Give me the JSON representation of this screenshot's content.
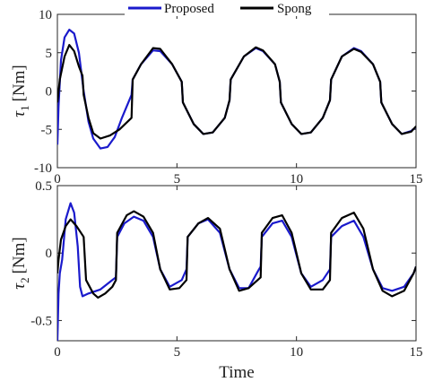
{
  "chart_data": {
    "type": "line",
    "xlabel": "Time",
    "legend": {
      "placement": "top-center",
      "entries": [
        {
          "name": "Proposed",
          "color": "#1a1acc"
        },
        {
          "name": "Spong",
          "color": "#000000"
        }
      ]
    },
    "subplots": [
      {
        "ylabel_symbol": "τ",
        "ylabel_sub": "1",
        "ylabel_unit": "[Nm]",
        "xlim": [
          0,
          15
        ],
        "ylim": [
          -10,
          10
        ],
        "xticks": [
          0,
          5,
          10,
          15
        ],
        "yticks": [
          10,
          5,
          0,
          -5,
          -10
        ],
        "xtick_labels": [
          "0",
          "5",
          "10",
          "15"
        ],
        "ytick_labels": [
          "10",
          "5",
          "0",
          "-5",
          "-10"
        ],
        "series": [
          {
            "name": "Proposed",
            "color": "#1a1acc",
            "points": [
              [
                0,
                -7
              ],
              [
                0.05,
                -2
              ],
              [
                0.15,
                4
              ],
              [
                0.3,
                7
              ],
              [
                0.5,
                8
              ],
              [
                0.7,
                7.5
              ],
              [
                0.9,
                5
              ],
              [
                1.1,
                0
              ],
              [
                1.3,
                -4
              ],
              [
                1.5,
                -6.2
              ],
              [
                1.8,
                -7.5
              ],
              [
                2.1,
                -7.3
              ],
              [
                2.4,
                -6
              ],
              [
                2.7,
                -3.5
              ],
              [
                3.1,
                -0.5
              ],
              [
                3.15,
                1.5
              ],
              [
                3.5,
                3.5
              ],
              [
                4.0,
                5.3
              ],
              [
                4.3,
                5.2
              ],
              [
                4.8,
                3.5
              ],
              [
                5.2,
                1.2
              ],
              [
                5.25,
                -1.5
              ],
              [
                5.7,
                -4.3
              ],
              [
                6.1,
                -5.6
              ],
              [
                6.5,
                -5.4
              ],
              [
                7.0,
                -3.5
              ],
              [
                7.2,
                -1.2
              ],
              [
                7.25,
                1.5
              ],
              [
                7.8,
                4.5
              ],
              [
                8.3,
                5.6
              ],
              [
                8.6,
                5.2
              ],
              [
                9.1,
                3.5
              ],
              [
                9.3,
                1.2
              ],
              [
                9.35,
                -1.5
              ],
              [
                9.8,
                -4.3
              ],
              [
                10.2,
                -5.6
              ],
              [
                10.6,
                -5.4
              ],
              [
                11.1,
                -3.5
              ],
              [
                11.4,
                -1.2
              ],
              [
                11.45,
                1.5
              ],
              [
                11.9,
                4.5
              ],
              [
                12.4,
                5.6
              ],
              [
                12.7,
                5.2
              ],
              [
                13.2,
                3.5
              ],
              [
                13.5,
                1.2
              ],
              [
                13.55,
                -1.5
              ],
              [
                14.0,
                -4.3
              ],
              [
                14.4,
                -5.6
              ],
              [
                14.8,
                -5.2
              ],
              [
                15,
                -4.7
              ]
            ]
          },
          {
            "name": "Spong",
            "color": "#000000",
            "points": [
              [
                0,
                -1.5
              ],
              [
                0.1,
                1.5
              ],
              [
                0.3,
                4.5
              ],
              [
                0.5,
                6
              ],
              [
                0.7,
                5.2
              ],
              [
                0.9,
                3.2
              ],
              [
                1.05,
                2
              ],
              [
                1.1,
                -0.5
              ],
              [
                1.3,
                -3.5
              ],
              [
                1.5,
                -5.5
              ],
              [
                1.8,
                -6.2
              ],
              [
                2.2,
                -5.8
              ],
              [
                2.6,
                -5
              ],
              [
                3.1,
                -3.5
              ],
              [
                3.15,
                1.5
              ],
              [
                3.5,
                3.5
              ],
              [
                4.0,
                5.6
              ],
              [
                4.3,
                5.5
              ],
              [
                4.8,
                3.5
              ],
              [
                5.2,
                1.2
              ],
              [
                5.25,
                -1.5
              ],
              [
                5.7,
                -4.3
              ],
              [
                6.1,
                -5.6
              ],
              [
                6.5,
                -5.4
              ],
              [
                7.0,
                -3.5
              ],
              [
                7.2,
                -1.2
              ],
              [
                7.25,
                1.5
              ],
              [
                7.8,
                4.5
              ],
              [
                8.3,
                5.7
              ],
              [
                8.6,
                5.3
              ],
              [
                9.1,
                3.5
              ],
              [
                9.3,
                1.2
              ],
              [
                9.35,
                -1.5
              ],
              [
                9.8,
                -4.3
              ],
              [
                10.2,
                -5.6
              ],
              [
                10.6,
                -5.4
              ],
              [
                11.1,
                -3.5
              ],
              [
                11.4,
                -1.2
              ],
              [
                11.45,
                1.5
              ],
              [
                11.9,
                4.5
              ],
              [
                12.4,
                5.5
              ],
              [
                12.7,
                5.1
              ],
              [
                13.2,
                3.5
              ],
              [
                13.5,
                1.2
              ],
              [
                13.55,
                -1.5
              ],
              [
                14.0,
                -4.3
              ],
              [
                14.4,
                -5.6
              ],
              [
                14.8,
                -5.3
              ],
              [
                15,
                -4.6
              ]
            ]
          }
        ]
      },
      {
        "ylabel_symbol": "τ",
        "ylabel_sub": "2",
        "ylabel_unit": "[Nm]",
        "xlim": [
          0,
          15
        ],
        "ylim": [
          -0.65,
          0.5
        ],
        "xticks": [
          0,
          5,
          10,
          15
        ],
        "yticks": [
          0.5,
          0,
          -0.5
        ],
        "xtick_labels": [
          "0",
          "5",
          "10",
          "15"
        ],
        "ytick_labels": [
          "0.5",
          "0",
          "-0.5"
        ],
        "series": [
          {
            "name": "Proposed",
            "color": "#1a1acc",
            "points": [
              [
                0,
                -0.65
              ],
              [
                0.05,
                -0.3
              ],
              [
                0.1,
                -0.15
              ],
              [
                0.2,
                -0.05
              ],
              [
                0.35,
                0.25
              ],
              [
                0.55,
                0.37
              ],
              [
                0.7,
                0.3
              ],
              [
                0.85,
                0.05
              ],
              [
                0.95,
                -0.25
              ],
              [
                1.05,
                -0.32
              ],
              [
                1.3,
                -0.3
              ],
              [
                1.8,
                -0.27
              ],
              [
                2.3,
                -0.2
              ],
              [
                2.45,
                -0.18
              ],
              [
                2.5,
                0.12
              ],
              [
                2.8,
                0.22
              ],
              [
                3.2,
                0.27
              ],
              [
                3.6,
                0.24
              ],
              [
                4.0,
                0.12
              ],
              [
                4.3,
                -0.12
              ],
              [
                4.7,
                -0.25
              ],
              [
                5.2,
                -0.2
              ],
              [
                5.4,
                -0.12
              ],
              [
                5.45,
                0.12
              ],
              [
                5.9,
                0.22
              ],
              [
                6.3,
                0.25
              ],
              [
                6.8,
                0.15
              ],
              [
                7.2,
                -0.12
              ],
              [
                7.6,
                -0.26
              ],
              [
                8.0,
                -0.26
              ],
              [
                8.4,
                -0.13
              ],
              [
                8.5,
                -0.1
              ],
              [
                8.55,
                0.12
              ],
              [
                9.0,
                0.22
              ],
              [
                9.4,
                0.24
              ],
              [
                9.8,
                0.12
              ],
              [
                10.2,
                -0.15
              ],
              [
                10.6,
                -0.25
              ],
              [
                11.1,
                -0.2
              ],
              [
                11.4,
                -0.12
              ],
              [
                11.45,
                0.12
              ],
              [
                11.9,
                0.2
              ],
              [
                12.4,
                0.24
              ],
              [
                12.8,
                0.12
              ],
              [
                13.2,
                -0.12
              ],
              [
                13.6,
                -0.26
              ],
              [
                14.0,
                -0.28
              ],
              [
                14.5,
                -0.25
              ],
              [
                14.9,
                -0.15
              ],
              [
                15,
                -0.1
              ]
            ]
          },
          {
            "name": "Spong",
            "color": "#000000",
            "points": [
              [
                0,
                -0.15
              ],
              [
                0.05,
                -0.05
              ],
              [
                0.15,
                0.1
              ],
              [
                0.35,
                0.2
              ],
              [
                0.55,
                0.25
              ],
              [
                0.8,
                0.2
              ],
              [
                1.1,
                0.12
              ],
              [
                1.2,
                -0.2
              ],
              [
                1.5,
                -0.3
              ],
              [
                1.7,
                -0.33
              ],
              [
                2.0,
                -0.3
              ],
              [
                2.3,
                -0.25
              ],
              [
                2.45,
                -0.2
              ],
              [
                2.5,
                0.15
              ],
              [
                2.9,
                0.28
              ],
              [
                3.2,
                0.31
              ],
              [
                3.6,
                0.27
              ],
              [
                4.0,
                0.15
              ],
              [
                4.3,
                -0.12
              ],
              [
                4.7,
                -0.27
              ],
              [
                5.1,
                -0.26
              ],
              [
                5.4,
                -0.2
              ],
              [
                5.45,
                0.12
              ],
              [
                5.9,
                0.22
              ],
              [
                6.3,
                0.26
              ],
              [
                6.8,
                0.18
              ],
              [
                7.2,
                -0.12
              ],
              [
                7.6,
                -0.28
              ],
              [
                8.0,
                -0.26
              ],
              [
                8.5,
                -0.18
              ],
              [
                8.55,
                0.15
              ],
              [
                9.0,
                0.26
              ],
              [
                9.4,
                0.28
              ],
              [
                9.8,
                0.15
              ],
              [
                10.2,
                -0.15
              ],
              [
                10.6,
                -0.27
              ],
              [
                11.1,
                -0.27
              ],
              [
                11.4,
                -0.2
              ],
              [
                11.45,
                0.15
              ],
              [
                11.9,
                0.26
              ],
              [
                12.4,
                0.3
              ],
              [
                12.8,
                0.18
              ],
              [
                13.2,
                -0.12
              ],
              [
                13.6,
                -0.28
              ],
              [
                14.0,
                -0.32
              ],
              [
                14.5,
                -0.28
              ],
              [
                14.9,
                -0.15
              ],
              [
                15,
                -0.1
              ]
            ]
          }
        ]
      }
    ]
  }
}
